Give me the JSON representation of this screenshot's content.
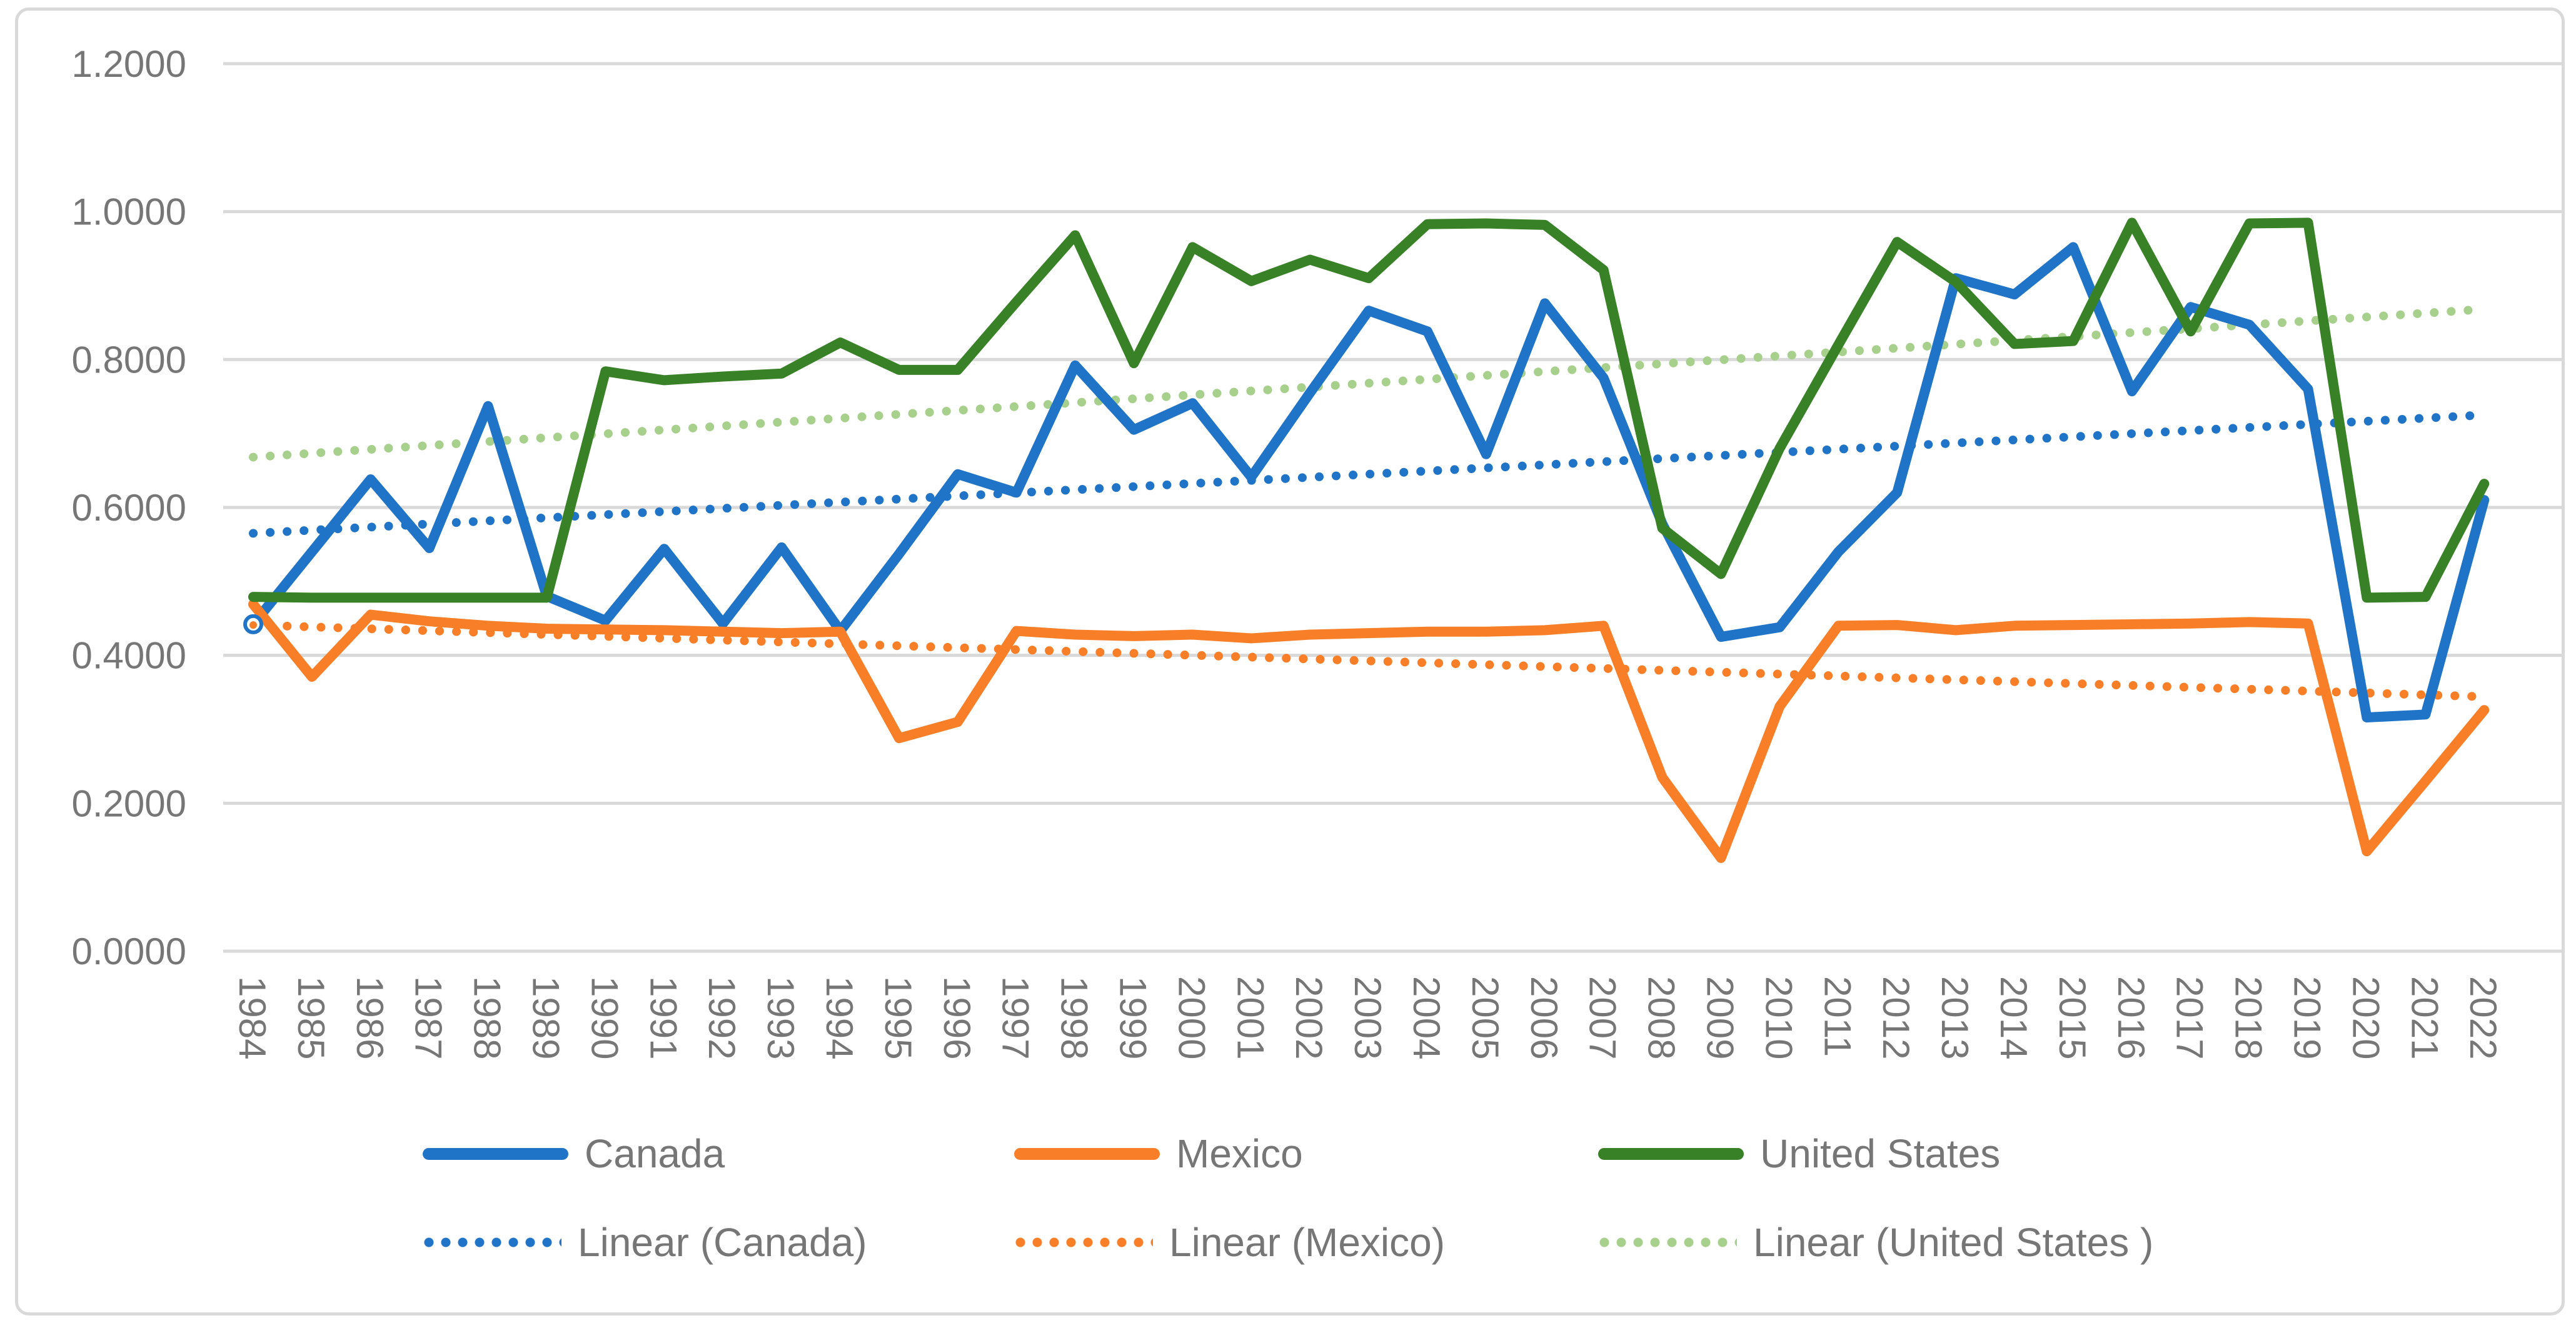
{
  "chart_data": {
    "type": "line",
    "title": "",
    "xlabel": "",
    "ylabel": "",
    "ylim": [
      0.0,
      1.2
    ],
    "grid": true,
    "legend_position": "bottom",
    "yticks": [
      {
        "value": 0.0,
        "label": "0.0000"
      },
      {
        "value": 0.2,
        "label": "0.2000"
      },
      {
        "value": 0.4,
        "label": "0.4000"
      },
      {
        "value": 0.6,
        "label": "0.6000"
      },
      {
        "value": 0.8,
        "label": "0.8000"
      },
      {
        "value": 1.0,
        "label": "1.0000"
      },
      {
        "value": 1.2,
        "label": "1.2000"
      }
    ],
    "categories": [
      1984,
      1985,
      1986,
      1987,
      1988,
      1989,
      1990,
      1991,
      1992,
      1993,
      1994,
      1995,
      1996,
      1997,
      1998,
      1999,
      2000,
      2001,
      2002,
      2003,
      2004,
      2005,
      2006,
      2007,
      2008,
      2009,
      2010,
      2011,
      2012,
      2013,
      2014,
      2015,
      2016,
      2017,
      2018,
      2019,
      2020,
      2021,
      2022
    ],
    "series": [
      {
        "name": "Canada",
        "color": "#2074c7",
        "style": "solid",
        "values": [
          0.442,
          0.54,
          0.638,
          0.545,
          0.737,
          0.48,
          0.447,
          0.544,
          0.443,
          0.546,
          0.433,
          0.537,
          0.645,
          0.62,
          0.792,
          0.705,
          0.741,
          0.641,
          0.755,
          0.866,
          0.838,
          0.672,
          0.876,
          0.775,
          0.578,
          0.425,
          0.438,
          0.54,
          0.62,
          0.91,
          0.888,
          0.952,
          0.757,
          0.871,
          0.847,
          0.76,
          0.316,
          0.32,
          0.61
        ]
      },
      {
        "name": "Mexico",
        "color": "#f87e27",
        "style": "solid",
        "values": [
          0.469,
          0.371,
          0.455,
          0.446,
          0.44,
          0.436,
          0.435,
          0.434,
          0.432,
          0.43,
          0.432,
          0.288,
          0.31,
          0.433,
          0.428,
          0.426,
          0.428,
          0.423,
          0.428,
          0.43,
          0.432,
          0.432,
          0.434,
          0.44,
          0.235,
          0.126,
          0.331,
          0.44,
          0.441,
          0.434,
          0.44,
          0.441,
          0.442,
          0.443,
          0.445,
          0.443,
          0.135,
          0.23,
          0.326
        ]
      },
      {
        "name": "United States",
        "color": "#398127",
        "style": "solid",
        "values": [
          0.479,
          0.478,
          0.478,
          0.478,
          0.478,
          0.478,
          0.784,
          0.772,
          0.777,
          0.781,
          0.823,
          0.786,
          0.786,
          0.878,
          0.968,
          0.795,
          0.952,
          0.906,
          0.935,
          0.91,
          0.983,
          0.984,
          0.982,
          0.921,
          0.572,
          0.51,
          0.68,
          0.82,
          0.959,
          0.905,
          0.821,
          0.825,
          0.985,
          0.838,
          0.984,
          0.985,
          0.478,
          0.479,
          0.632
        ]
      },
      {
        "name": "Linear (Canada)",
        "color": "#2074c7",
        "style": "dotted",
        "trend": true,
        "endpoints": [
          0.565,
          0.725
        ]
      },
      {
        "name": "Linear (Mexico)",
        "color": "#f87e27",
        "style": "dotted",
        "trend": true,
        "endpoints": [
          0.441,
          0.344
        ]
      },
      {
        "name": "Linear (United States )",
        "color": "#a8d08d",
        "style": "dotted",
        "trend": true,
        "endpoints": [
          0.668,
          0.868
        ]
      }
    ],
    "start_marker": {
      "series": "Canada",
      "year": 1984,
      "value": 0.442
    }
  },
  "style_colors": {
    "gridline": "#d9d9d9",
    "frame_border": "#d9d9d9",
    "axis_text": "#767676",
    "background": "#ffffff"
  }
}
